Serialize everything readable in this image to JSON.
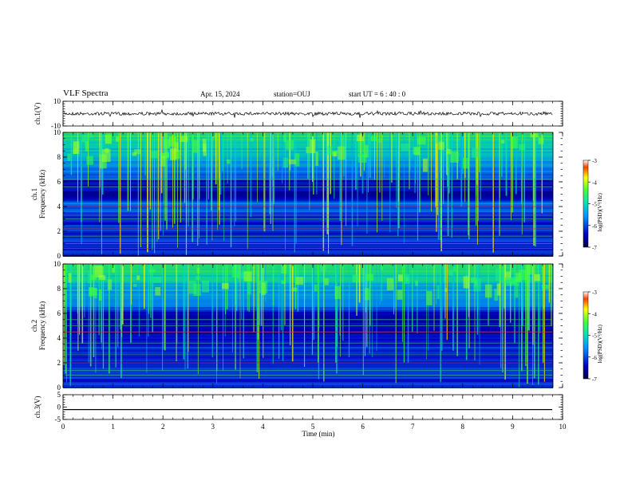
{
  "header": {
    "title": "VLF Spectra",
    "date": "Apr. 15, 2024",
    "station": "station=OUJ",
    "start_time": "start  UT  =  6 : 40 : 0"
  },
  "chart_data": [
    {
      "type": "line",
      "panel": "ch1-waveform",
      "ylabel": "ch.1(V)",
      "ylim": [
        -10,
        10
      ],
      "yticks": [
        "10",
        "-10"
      ],
      "baseline": 0
    },
    {
      "type": "heatmap",
      "panel": "ch1-spectrogram",
      "ylabel": "ch.1\nFrequency (kHz)",
      "ylim": [
        0,
        10
      ],
      "yticks": [
        "0",
        "2",
        "4",
        "6",
        "8",
        "10"
      ],
      "colorbar": {
        "label": "log(PSD)(V²/Hz)",
        "range": [
          -7,
          -3
        ],
        "ticks": [
          "-3",
          "-4",
          "-5",
          "-6",
          "-7"
        ]
      }
    },
    {
      "type": "heatmap",
      "panel": "ch2-spectrogram",
      "ylabel": "ch.2\nFrequency (kHz)",
      "ylim": [
        0,
        10
      ],
      "yticks": [
        "0",
        "2",
        "4",
        "6",
        "8",
        "10"
      ],
      "colorbar": {
        "label": "log(PSD)(V²/Hz)",
        "range": [
          -7,
          -3
        ],
        "ticks": [
          "-3",
          "-4",
          "-5",
          "-6",
          "-7"
        ]
      }
    },
    {
      "type": "line",
      "panel": "ch3-waveform",
      "ylabel": "ch.3(V)",
      "ylim": [
        -5,
        5
      ],
      "yticks": [
        "5",
        "0",
        "-5"
      ],
      "baseline": -1
    }
  ],
  "xaxis": {
    "label": "Time (min)",
    "range": [
      0,
      10
    ],
    "ticks": [
      "0",
      "1",
      "2",
      "3",
      "4",
      "5",
      "6",
      "7",
      "8",
      "9",
      "10"
    ]
  }
}
